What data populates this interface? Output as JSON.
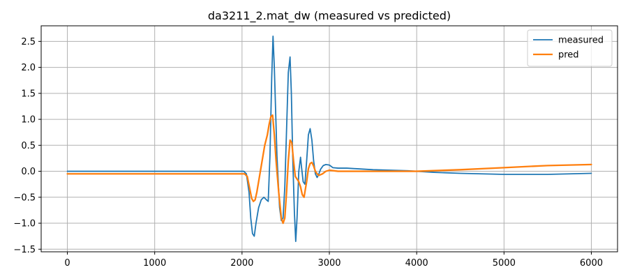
{
  "chart_data": {
    "type": "line",
    "title": "da3211_2.mat_dw  (measured vs predicted)",
    "xlabel": "",
    "ylabel": "",
    "xlim": [
      -300,
      6300
    ],
    "ylim": [
      -1.55,
      2.8
    ],
    "xticks": [
      0,
      1000,
      2000,
      3000,
      4000,
      5000,
      6000
    ],
    "yticks": [
      -1.5,
      -1.0,
      -0.5,
      0.0,
      0.5,
      1.0,
      1.5,
      2.0,
      2.5
    ],
    "xtick_labels": [
      "0",
      "1000",
      "2000",
      "3000",
      "4000",
      "5000",
      "6000"
    ],
    "ytick_labels": [
      "−1.5",
      "−1.0",
      "−0.5",
      "0.0",
      "0.5",
      "1.0",
      "1.5",
      "2.0",
      "2.5"
    ],
    "grid": true,
    "legend_position": "top-right",
    "series": [
      {
        "name": "measured",
        "color": "#1f77b4",
        "x": [
          0,
          500,
          1000,
          1500,
          2000,
          2020,
          2050,
          2080,
          2100,
          2120,
          2140,
          2160,
          2190,
          2220,
          2250,
          2280,
          2300,
          2320,
          2340,
          2355,
          2370,
          2400,
          2430,
          2450,
          2470,
          2490,
          2510,
          2530,
          2550,
          2565,
          2580,
          2600,
          2615,
          2630,
          2650,
          2670,
          2680,
          2700,
          2720,
          2740,
          2760,
          2780,
          2800,
          2820,
          2840,
          2860,
          2880,
          2900,
          2930,
          2960,
          3000,
          3040,
          3100,
          3200,
          3300,
          3400,
          3500,
          3700,
          3900,
          4000,
          4200,
          4500,
          5000,
          5500,
          6000
        ],
        "y": [
          0.0,
          0.0,
          0.0,
          0.0,
          0.0,
          0.0,
          -0.05,
          -0.4,
          -0.9,
          -1.2,
          -1.25,
          -1.0,
          -0.7,
          -0.55,
          -0.5,
          -0.55,
          -0.58,
          0.3,
          1.8,
          2.6,
          2.0,
          0.3,
          -0.7,
          -0.95,
          -0.9,
          -0.3,
          0.8,
          1.9,
          2.2,
          1.5,
          0.3,
          -0.8,
          -1.35,
          -0.9,
          0.0,
          0.27,
          0.1,
          -0.2,
          -0.25,
          0.2,
          0.7,
          0.82,
          0.6,
          0.2,
          -0.05,
          -0.12,
          -0.05,
          0.04,
          0.11,
          0.13,
          0.12,
          0.07,
          0.06,
          0.06,
          0.05,
          0.04,
          0.03,
          0.02,
          0.01,
          0.0,
          -0.02,
          -0.04,
          -0.06,
          -0.06,
          -0.04
        ]
      },
      {
        "name": "pred",
        "color": "#ff7f0e",
        "x": [
          0,
          500,
          1000,
          1500,
          2000,
          2030,
          2060,
          2090,
          2110,
          2130,
          2150,
          2170,
          2200,
          2230,
          2260,
          2290,
          2310,
          2330,
          2350,
          2370,
          2390,
          2420,
          2450,
          2470,
          2490,
          2510,
          2530,
          2550,
          2570,
          2590,
          2610,
          2630,
          2650,
          2670,
          2690,
          2710,
          2740,
          2760,
          2780,
          2800,
          2820,
          2840,
          2860,
          2880,
          2920,
          2960,
          3000,
          3100,
          3200,
          3500,
          4000,
          4500,
          5000,
          5500,
          6000
        ],
        "y": [
          -0.05,
          -0.05,
          -0.05,
          -0.05,
          -0.05,
          -0.05,
          -0.1,
          -0.35,
          -0.52,
          -0.58,
          -0.55,
          -0.4,
          -0.1,
          0.2,
          0.5,
          0.7,
          0.9,
          1.05,
          1.08,
          0.7,
          0.2,
          -0.4,
          -0.9,
          -1.0,
          -0.9,
          -0.4,
          0.2,
          0.6,
          0.55,
          0.2,
          -0.1,
          -0.15,
          -0.2,
          -0.3,
          -0.45,
          -0.5,
          -0.2,
          0.05,
          0.15,
          0.17,
          0.1,
          0.0,
          -0.05,
          -0.08,
          -0.05,
          0.0,
          0.02,
          0.0,
          0.0,
          0.0,
          0.0,
          0.03,
          0.07,
          0.11,
          0.13
        ]
      }
    ]
  }
}
